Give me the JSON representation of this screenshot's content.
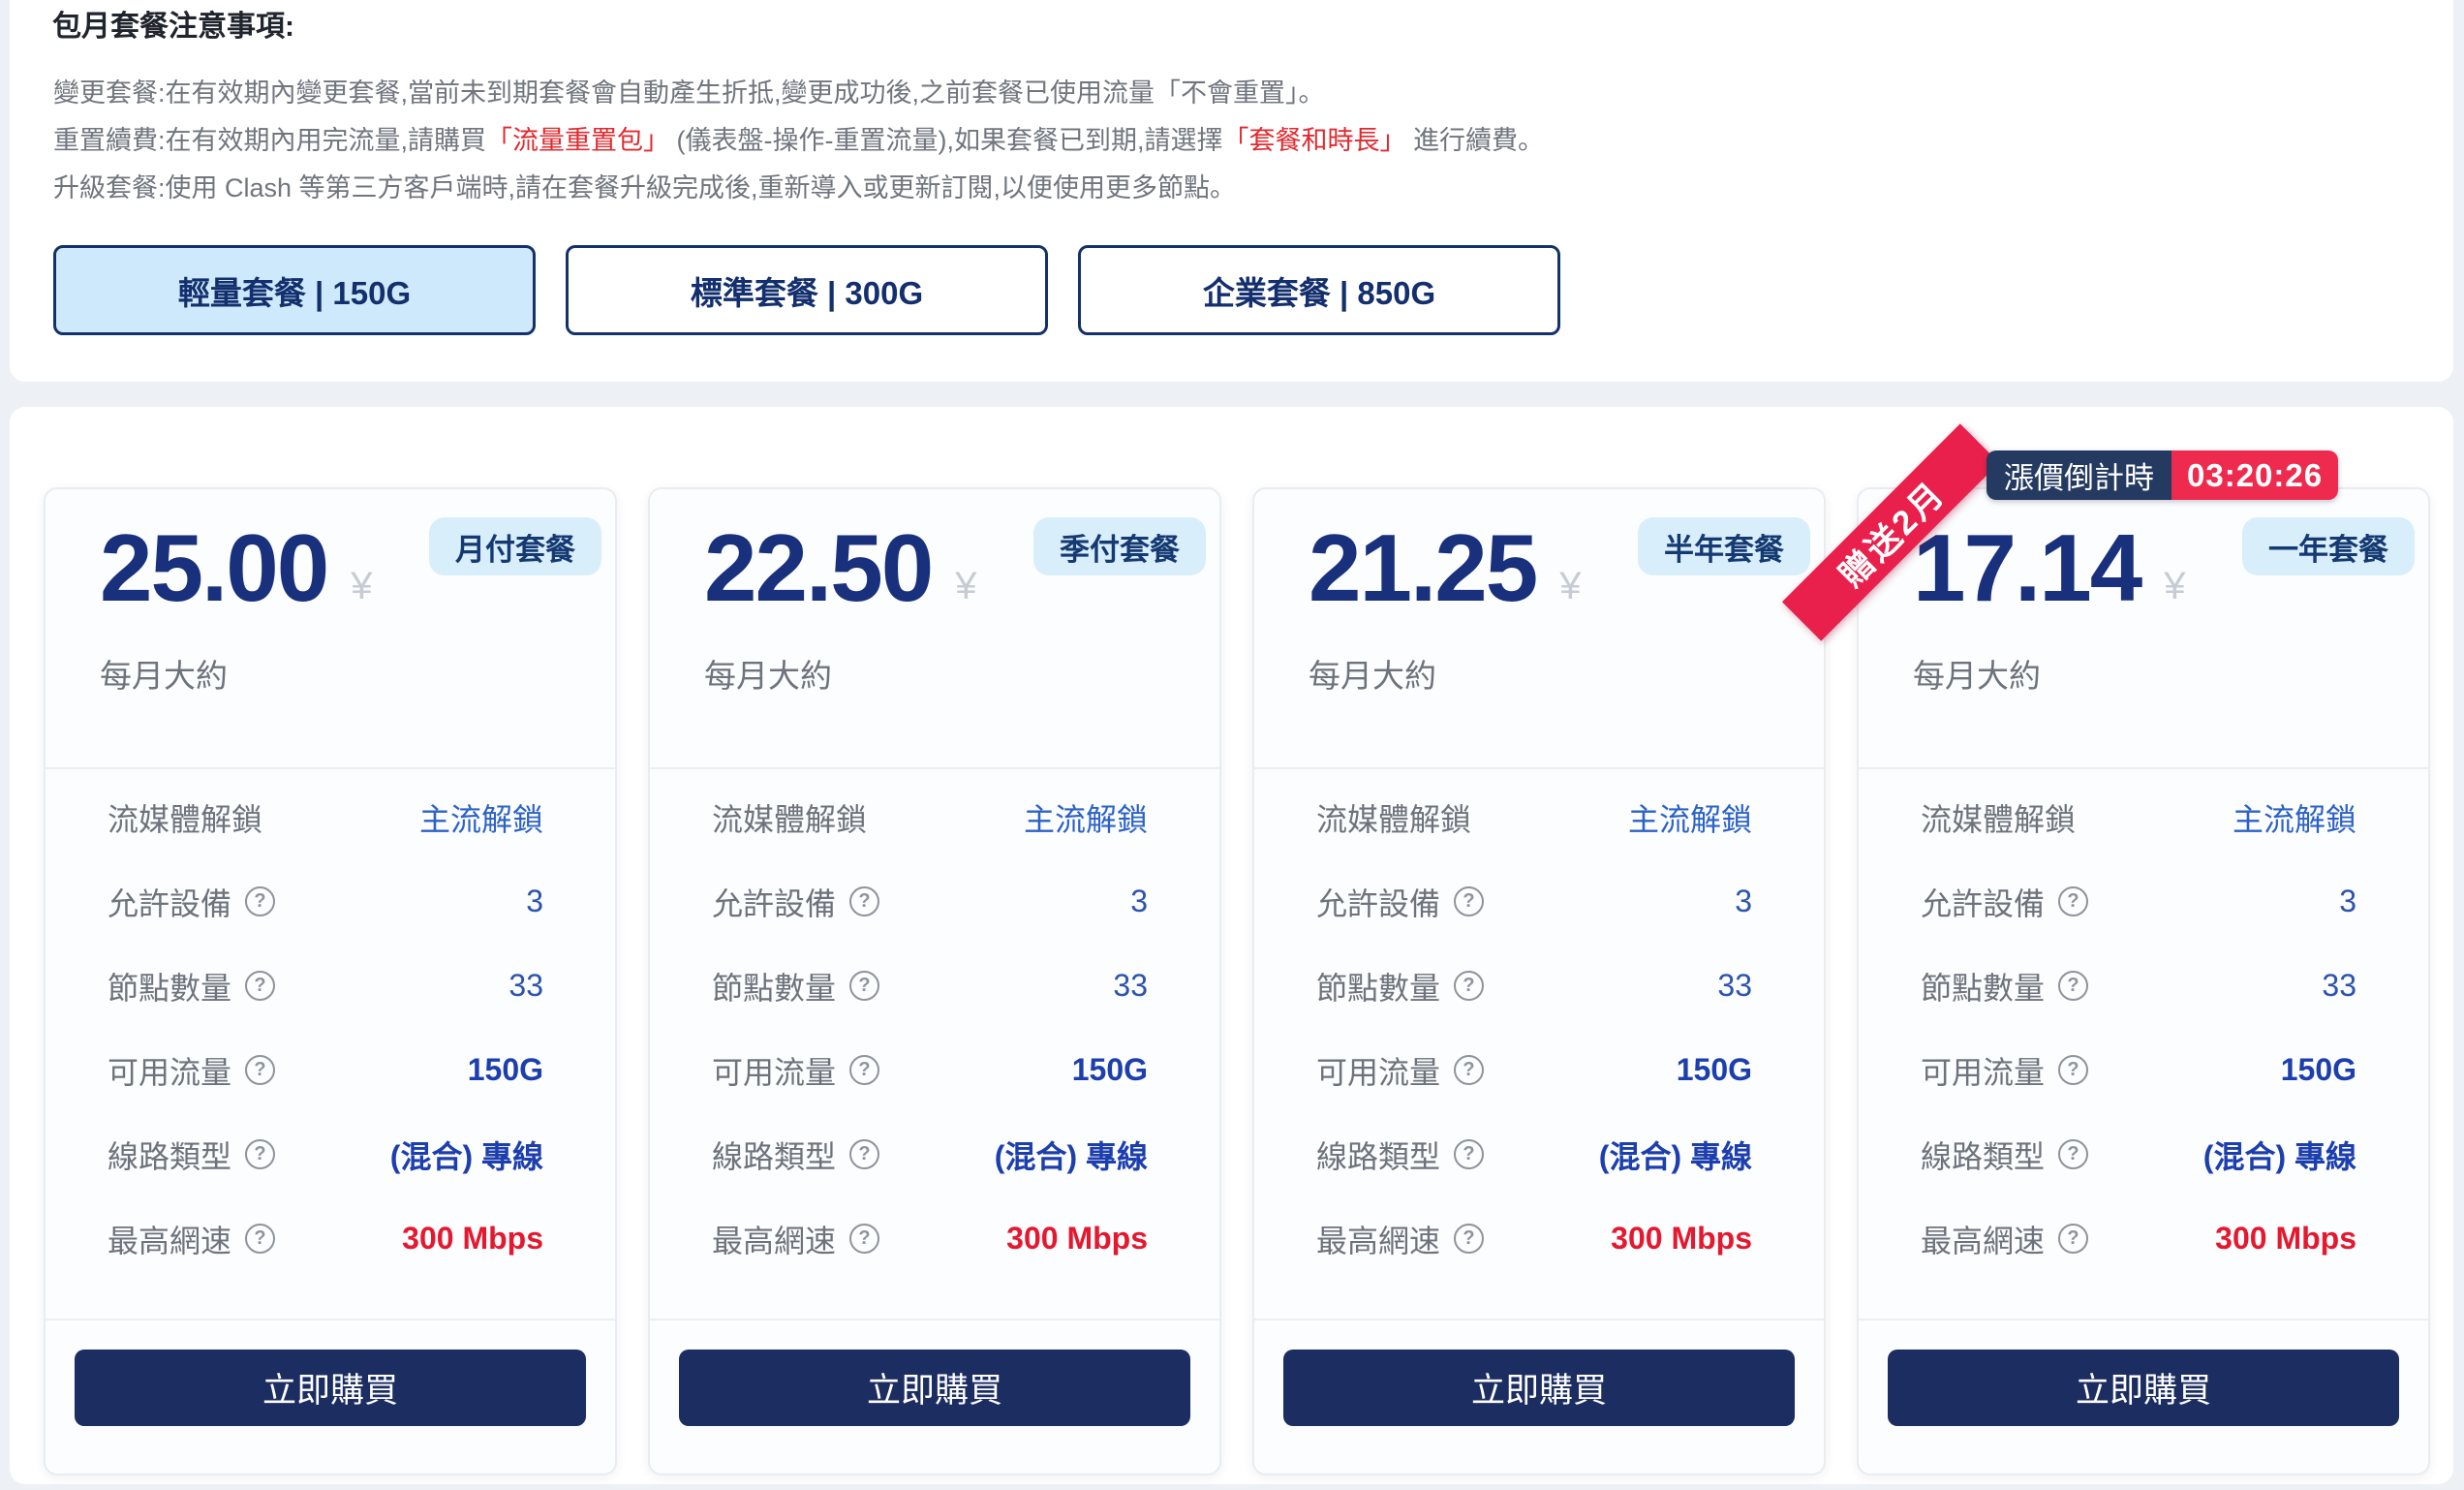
{
  "notice": {
    "title": "包月套餐注意事項:",
    "lines": [
      {
        "parts": [
          {
            "text": "變更套餐:在有效期內變更套餐,當前未到期套餐會自動產生折抵,變更成功後,之前套餐已使用流量「不會重置」。",
            "style": ""
          }
        ]
      },
      {
        "parts": [
          {
            "text": "重置續費:在有效期內用完流量,請購買",
            "style": ""
          },
          {
            "text": "「流量重置包」",
            "style": "red-quote"
          },
          {
            "text": " (儀表盤-操作-重置流量),如果套餐已到期,請選擇",
            "style": ""
          },
          {
            "text": "「套餐和時長」",
            "style": "red-quote"
          },
          {
            "text": " 進行續費。",
            "style": ""
          }
        ]
      },
      {
        "parts": [
          {
            "text": "升級套餐:使用 Clash 等第三方客戶端時,請在套餐升級完成後,重新導入或更新訂閱,以便使用更多節點。",
            "style": ""
          }
        ]
      }
    ]
  },
  "tabs": [
    {
      "label": "輕量套餐 | 150G",
      "state": "active"
    },
    {
      "label": "標準套餐 | 300G",
      "state": ""
    },
    {
      "label": "企業套餐 | 850G",
      "state": ""
    }
  ],
  "card_labels": {
    "currency": "¥",
    "per": "每月大約",
    "cta": "立即購買",
    "help_glyph": "?"
  },
  "features": [
    {
      "label": "流媒體解鎖",
      "value": "主流解鎖",
      "style": "link",
      "help": ""
    },
    {
      "label": "允許設備",
      "value": "3",
      "style": "num",
      "help": "yes"
    },
    {
      "label": "節點數量",
      "value": "33",
      "style": "num",
      "help": "yes"
    },
    {
      "label": "可用流量",
      "value": "150G",
      "style": "strong",
      "help": "yes"
    },
    {
      "label": "線路類型",
      "value": "(混合) 專線",
      "style": "strong",
      "help": "yes"
    },
    {
      "label": "最高網速",
      "value": "300 Mbps",
      "style": "speed",
      "help": "yes"
    }
  ],
  "cards": [
    {
      "price": "25.00",
      "badge": "月付套餐"
    },
    {
      "price": "22.50",
      "badge": "季付套餐"
    },
    {
      "price": "21.25",
      "badge": "半年套餐"
    },
    {
      "price": "17.14",
      "badge": "一年套餐",
      "ribbon": "贈送2月",
      "countdown": {
        "label": "漲價倒計時",
        "time": "03:20:26"
      }
    }
  ],
  "colors": {
    "accent_navy": "#1c2d62",
    "price_navy": "#19317c",
    "badge_blue_bg": "#d9eefb",
    "tab_active_bg": "#cde9fb",
    "link_blue": "#2c62c6",
    "strong_blue": "#1d3fae",
    "alert_red": "#e4182e",
    "ribbon_red": "#e9204c",
    "countdown_red": "#ee2b4e",
    "countdown_navy": "#253a61"
  }
}
